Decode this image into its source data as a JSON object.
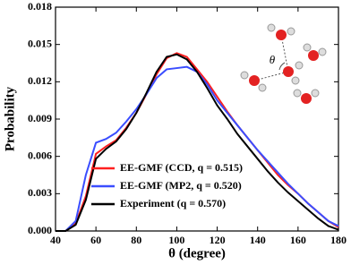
{
  "chart_data": {
    "type": "line",
    "xlabel": "θ (degree)",
    "ylabel": "Probability",
    "x": [
      40,
      45,
      50,
      55,
      60,
      65,
      70,
      75,
      80,
      85,
      90,
      95,
      100,
      105,
      110,
      115,
      120,
      125,
      130,
      135,
      140,
      145,
      150,
      155,
      160,
      165,
      170,
      175,
      180
    ],
    "series": [
      {
        "name": "EE-GMF (CCD, q = 0.515)",
        "color": "#ff2020",
        "values": [
          0,
          0,
          0.0006,
          0.0028,
          0.0062,
          0.0068,
          0.0073,
          0.0083,
          0.0095,
          0.011,
          0.0126,
          0.0139,
          0.0143,
          0.014,
          0.013,
          0.012,
          0.0108,
          0.0096,
          0.0085,
          0.0075,
          0.0065,
          0.0055,
          0.0045,
          0.0037,
          0.003,
          0.0022,
          0.0015,
          0.0008,
          0.0003
        ]
      },
      {
        "name": "EE-GMF (MP2, q = 0.520)",
        "color": "#3a4dff",
        "values": [
          0,
          0,
          0.0008,
          0.0045,
          0.0071,
          0.0074,
          0.0079,
          0.0088,
          0.0098,
          0.011,
          0.0123,
          0.013,
          0.0131,
          0.0132,
          0.0128,
          0.0118,
          0.0105,
          0.0095,
          0.0085,
          0.0075,
          0.0065,
          0.0056,
          0.0047,
          0.0038,
          0.003,
          0.0022,
          0.0015,
          0.0008,
          0.0004
        ]
      },
      {
        "name": "Experiment (q = 0.570)",
        "color": "#000000",
        "values": [
          0,
          0,
          0.0005,
          0.0025,
          0.0058,
          0.0066,
          0.0072,
          0.0082,
          0.0095,
          0.0111,
          0.0128,
          0.014,
          0.0142,
          0.0138,
          0.0128,
          0.0115,
          0.0101,
          0.009,
          0.0078,
          0.0068,
          0.0058,
          0.0048,
          0.0039,
          0.0031,
          0.0024,
          0.0017,
          0.001,
          0.0004,
          0.0001
        ]
      }
    ],
    "xlim": [
      40,
      180
    ],
    "xticks": [
      40,
      60,
      80,
      100,
      120,
      140,
      160,
      180
    ],
    "ylim": [
      0,
      0.018
    ],
    "yticks": [
      {
        "value": 0,
        "label": "0.000"
      },
      0.003,
      0.006,
      0.009,
      0.012,
      0.015,
      0.018
    ],
    "legend": "lower left",
    "inset_label": "θ"
  }
}
